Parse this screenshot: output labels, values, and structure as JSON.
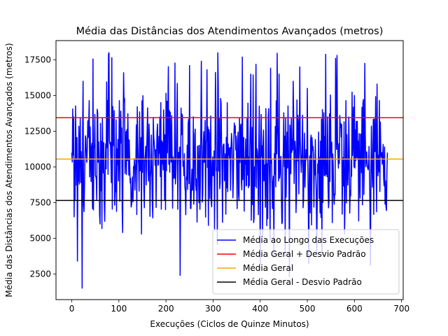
{
  "chart_data": {
    "type": "line",
    "title": "Média das Distâncias dos Atendimentos Avançados (metros)",
    "xlabel": "Execuções (Ciclos de Quinze Minutos)",
    "ylabel": "Média das Distâncias dos Atendimentos Avançados (metros)",
    "xlim": [
      -33.5,
      703.5
    ],
    "ylim": [
      700,
      18850
    ],
    "xticks": [
      0,
      100,
      200,
      300,
      400,
      500,
      600,
      700
    ],
    "yticks": [
      2500,
      5000,
      7500,
      10000,
      12500,
      15000,
      17500
    ],
    "grid": false,
    "legend_position": "lower-right",
    "series": [
      {
        "name": "Média ao Longo das Execuções",
        "color": "#0000ff",
        "x_range": [
          0,
          670
        ],
        "points_count": 671,
        "y_approx_min": 1500,
        "y_approx_max": 18000,
        "values_key_points": [
          [
            0,
            11000
          ],
          [
            5,
            6500
          ],
          [
            12,
            3400
          ],
          [
            22,
            1500
          ],
          [
            24,
            16000
          ],
          [
            30,
            12000
          ],
          [
            60,
            6000
          ],
          [
            78,
            17900
          ],
          [
            108,
            5400
          ],
          [
            148,
            5300
          ],
          [
            195,
            14000
          ],
          [
            230,
            2400
          ],
          [
            250,
            17100
          ],
          [
            275,
            17400
          ],
          [
            290,
            5900
          ],
          [
            310,
            18000
          ],
          [
            380,
            16500
          ],
          [
            400,
            3200
          ],
          [
            440,
            16500
          ],
          [
            462,
            2300
          ],
          [
            470,
            16000
          ],
          [
            478,
            14700
          ],
          [
            500,
            15500
          ],
          [
            520,
            4000
          ],
          [
            560,
            17600
          ],
          [
            600,
            15000
          ],
          [
            648,
            15800
          ],
          [
            670,
            11000
          ]
        ]
      },
      {
        "name": "Média Geral + Desvio Padrão",
        "color": "#ff0000",
        "value": 13450
      },
      {
        "name": "Média Geral",
        "color": "#ffa500",
        "value": 10550
      },
      {
        "name": "Média Geral - Desvio Padrão",
        "color": "#000000",
        "value": 7650
      }
    ]
  }
}
